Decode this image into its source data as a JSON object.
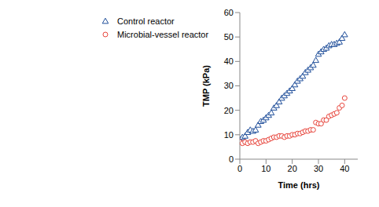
{
  "chart_data": {
    "type": "scatter",
    "x_label": "Time (hrs)",
    "y_label": "TMP (kPa)",
    "xlim": [
      0,
      45
    ],
    "xticks": [
      0,
      10,
      20,
      30,
      40
    ],
    "ylim": [
      0,
      60
    ],
    "yticks": [
      0,
      10,
      20,
      30,
      40,
      50,
      60
    ],
    "grid": false,
    "legend": "top-left",
    "x": [
      0,
      1,
      2,
      3,
      4,
      5,
      6,
      7,
      8,
      9,
      10,
      11,
      12,
      13,
      14,
      15,
      16,
      17,
      18,
      19,
      20,
      21,
      22,
      23,
      24,
      25,
      26,
      27,
      28,
      29,
      30,
      31,
      32,
      33,
      34,
      35,
      36,
      37,
      38,
      39,
      40
    ],
    "series": [
      {
        "name": "Control reactor",
        "color": "#1f4e9a",
        "marker": "triangle",
        "values": [
          8,
          9,
          9.5,
          11,
          12,
          11.5,
          12,
          14,
          15.5,
          16,
          17,
          18,
          19,
          21,
          22,
          23.5,
          25,
          26,
          27,
          28,
          29,
          30.5,
          32,
          33,
          34,
          35.5,
          36.5,
          37.5,
          38.5,
          40.5,
          43,
          44,
          45,
          45.5,
          46.5,
          47,
          47,
          47.5,
          48,
          49.5,
          51
        ]
      },
      {
        "name": "Microbial-vessel reactor",
        "color": "#e8453c",
        "marker": "circle",
        "values": [
          7,
          6.5,
          7,
          6.5,
          7,
          7,
          7.5,
          6.5,
          7,
          7.5,
          7.5,
          8,
          8.5,
          9,
          9,
          9.5,
          9.5,
          9,
          9.5,
          9.5,
          10,
          10,
          10.5,
          10.5,
          11,
          11.5,
          11.5,
          12,
          12,
          15,
          14.5,
          14.5,
          16,
          16,
          17.5,
          18,
          18.5,
          19,
          21,
          22,
          25
        ]
      }
    ]
  }
}
